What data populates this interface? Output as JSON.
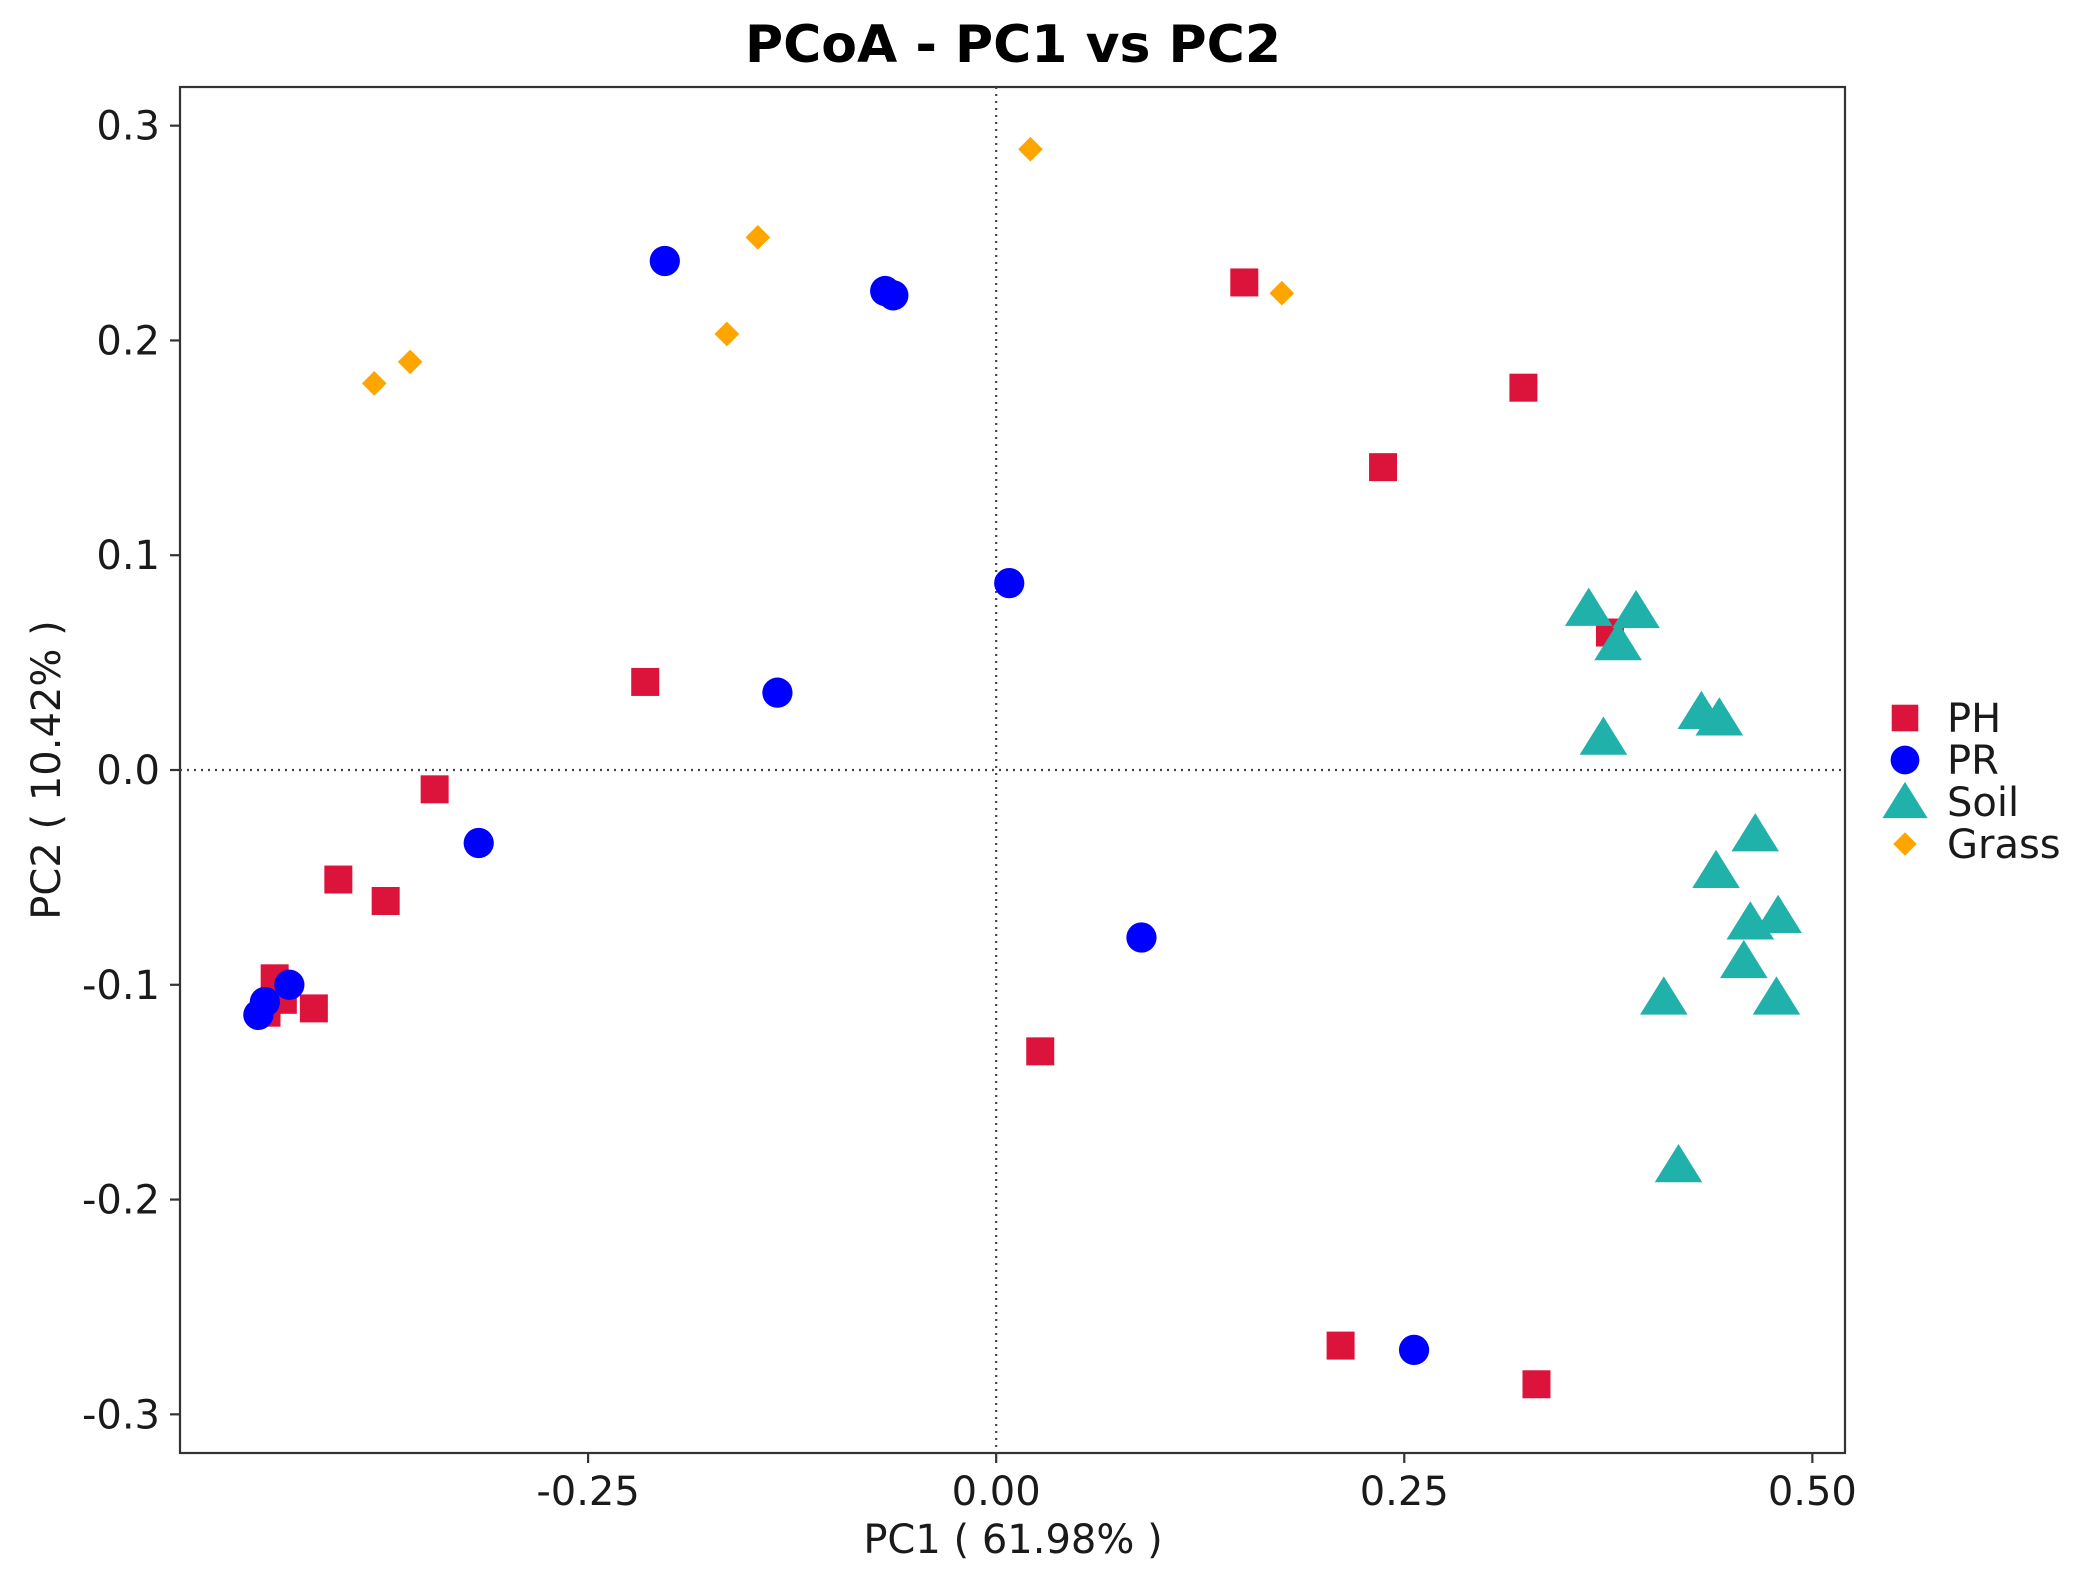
{
  "chart_data": {
    "type": "scatter",
    "title": "PCoA - PC1 vs PC2",
    "xlabel": "PC1 ( 61.98% )",
    "ylabel": "PC2 ( 10.42% )",
    "xlim": [
      -0.5,
      0.52
    ],
    "ylim": [
      -0.318,
      0.318
    ],
    "xticks": [
      -0.25,
      0.0,
      0.25,
      0.5
    ],
    "xtick_labels": [
      "-0.25",
      "0.00",
      "0.25",
      "0.50"
    ],
    "yticks": [
      0.3,
      0.2,
      0.1,
      0.0,
      -0.1,
      -0.2,
      -0.3
    ],
    "ytick_labels": [
      "0.3",
      "0.2",
      "0.1",
      "0.0",
      "-0.1",
      "-0.2",
      "-0.3"
    ],
    "reference_lines": {
      "x": 0.0,
      "y": 0.0,
      "style": "dotted"
    },
    "grid": false,
    "legend_position": "right",
    "series": [
      {
        "name": "PH",
        "marker": "square",
        "color": "#DC143C",
        "points": [
          [
            -0.447,
            -0.113
          ],
          [
            -0.442,
            -0.097
          ],
          [
            -0.437,
            -0.107
          ],
          [
            -0.418,
            -0.111
          ],
          [
            -0.403,
            -0.051
          ],
          [
            -0.374,
            -0.061
          ],
          [
            -0.344,
            -0.009
          ],
          [
            -0.215,
            0.041
          ],
          [
            0.152,
            0.227
          ],
          [
            0.237,
            0.141
          ],
          [
            0.323,
            0.178
          ],
          [
            0.376,
            0.064
          ],
          [
            0.027,
            -0.131
          ],
          [
            0.211,
            -0.268
          ],
          [
            0.331,
            -0.286
          ]
        ]
      },
      {
        "name": "PR",
        "marker": "circle",
        "color": "#0000FF",
        "points": [
          [
            -0.452,
            -0.114
          ],
          [
            -0.448,
            -0.108
          ],
          [
            -0.433,
            -0.1
          ],
          [
            -0.317,
            -0.034
          ],
          [
            -0.134,
            0.036
          ],
          [
            -0.203,
            0.237
          ],
          [
            -0.068,
            0.223
          ],
          [
            -0.063,
            0.221
          ],
          [
            0.008,
            0.087
          ],
          [
            0.089,
            -0.078
          ],
          [
            0.256,
            -0.27
          ]
        ]
      },
      {
        "name": "Soil",
        "marker": "triangle",
        "color": "#20B2AA",
        "points": [
          [
            0.363,
            0.075
          ],
          [
            0.392,
            0.074
          ],
          [
            0.381,
            0.059
          ],
          [
            0.372,
            0.015
          ],
          [
            0.432,
            0.027
          ],
          [
            0.443,
            0.024
          ],
          [
            0.465,
            -0.03
          ],
          [
            0.441,
            -0.047
          ],
          [
            0.462,
            -0.071
          ],
          [
            0.479,
            -0.068
          ],
          [
            0.458,
            -0.089
          ],
          [
            0.478,
            -0.106
          ],
          [
            0.409,
            -0.106
          ],
          [
            0.418,
            -0.184
          ]
        ]
      },
      {
        "name": "Grass",
        "marker": "diamond",
        "color": "#FFA500",
        "points": [
          [
            -0.381,
            0.18
          ],
          [
            -0.359,
            0.19
          ],
          [
            -0.165,
            0.203
          ],
          [
            -0.146,
            0.248
          ],
          [
            0.021,
            0.289
          ],
          [
            0.175,
            0.222
          ]
        ]
      }
    ]
  }
}
